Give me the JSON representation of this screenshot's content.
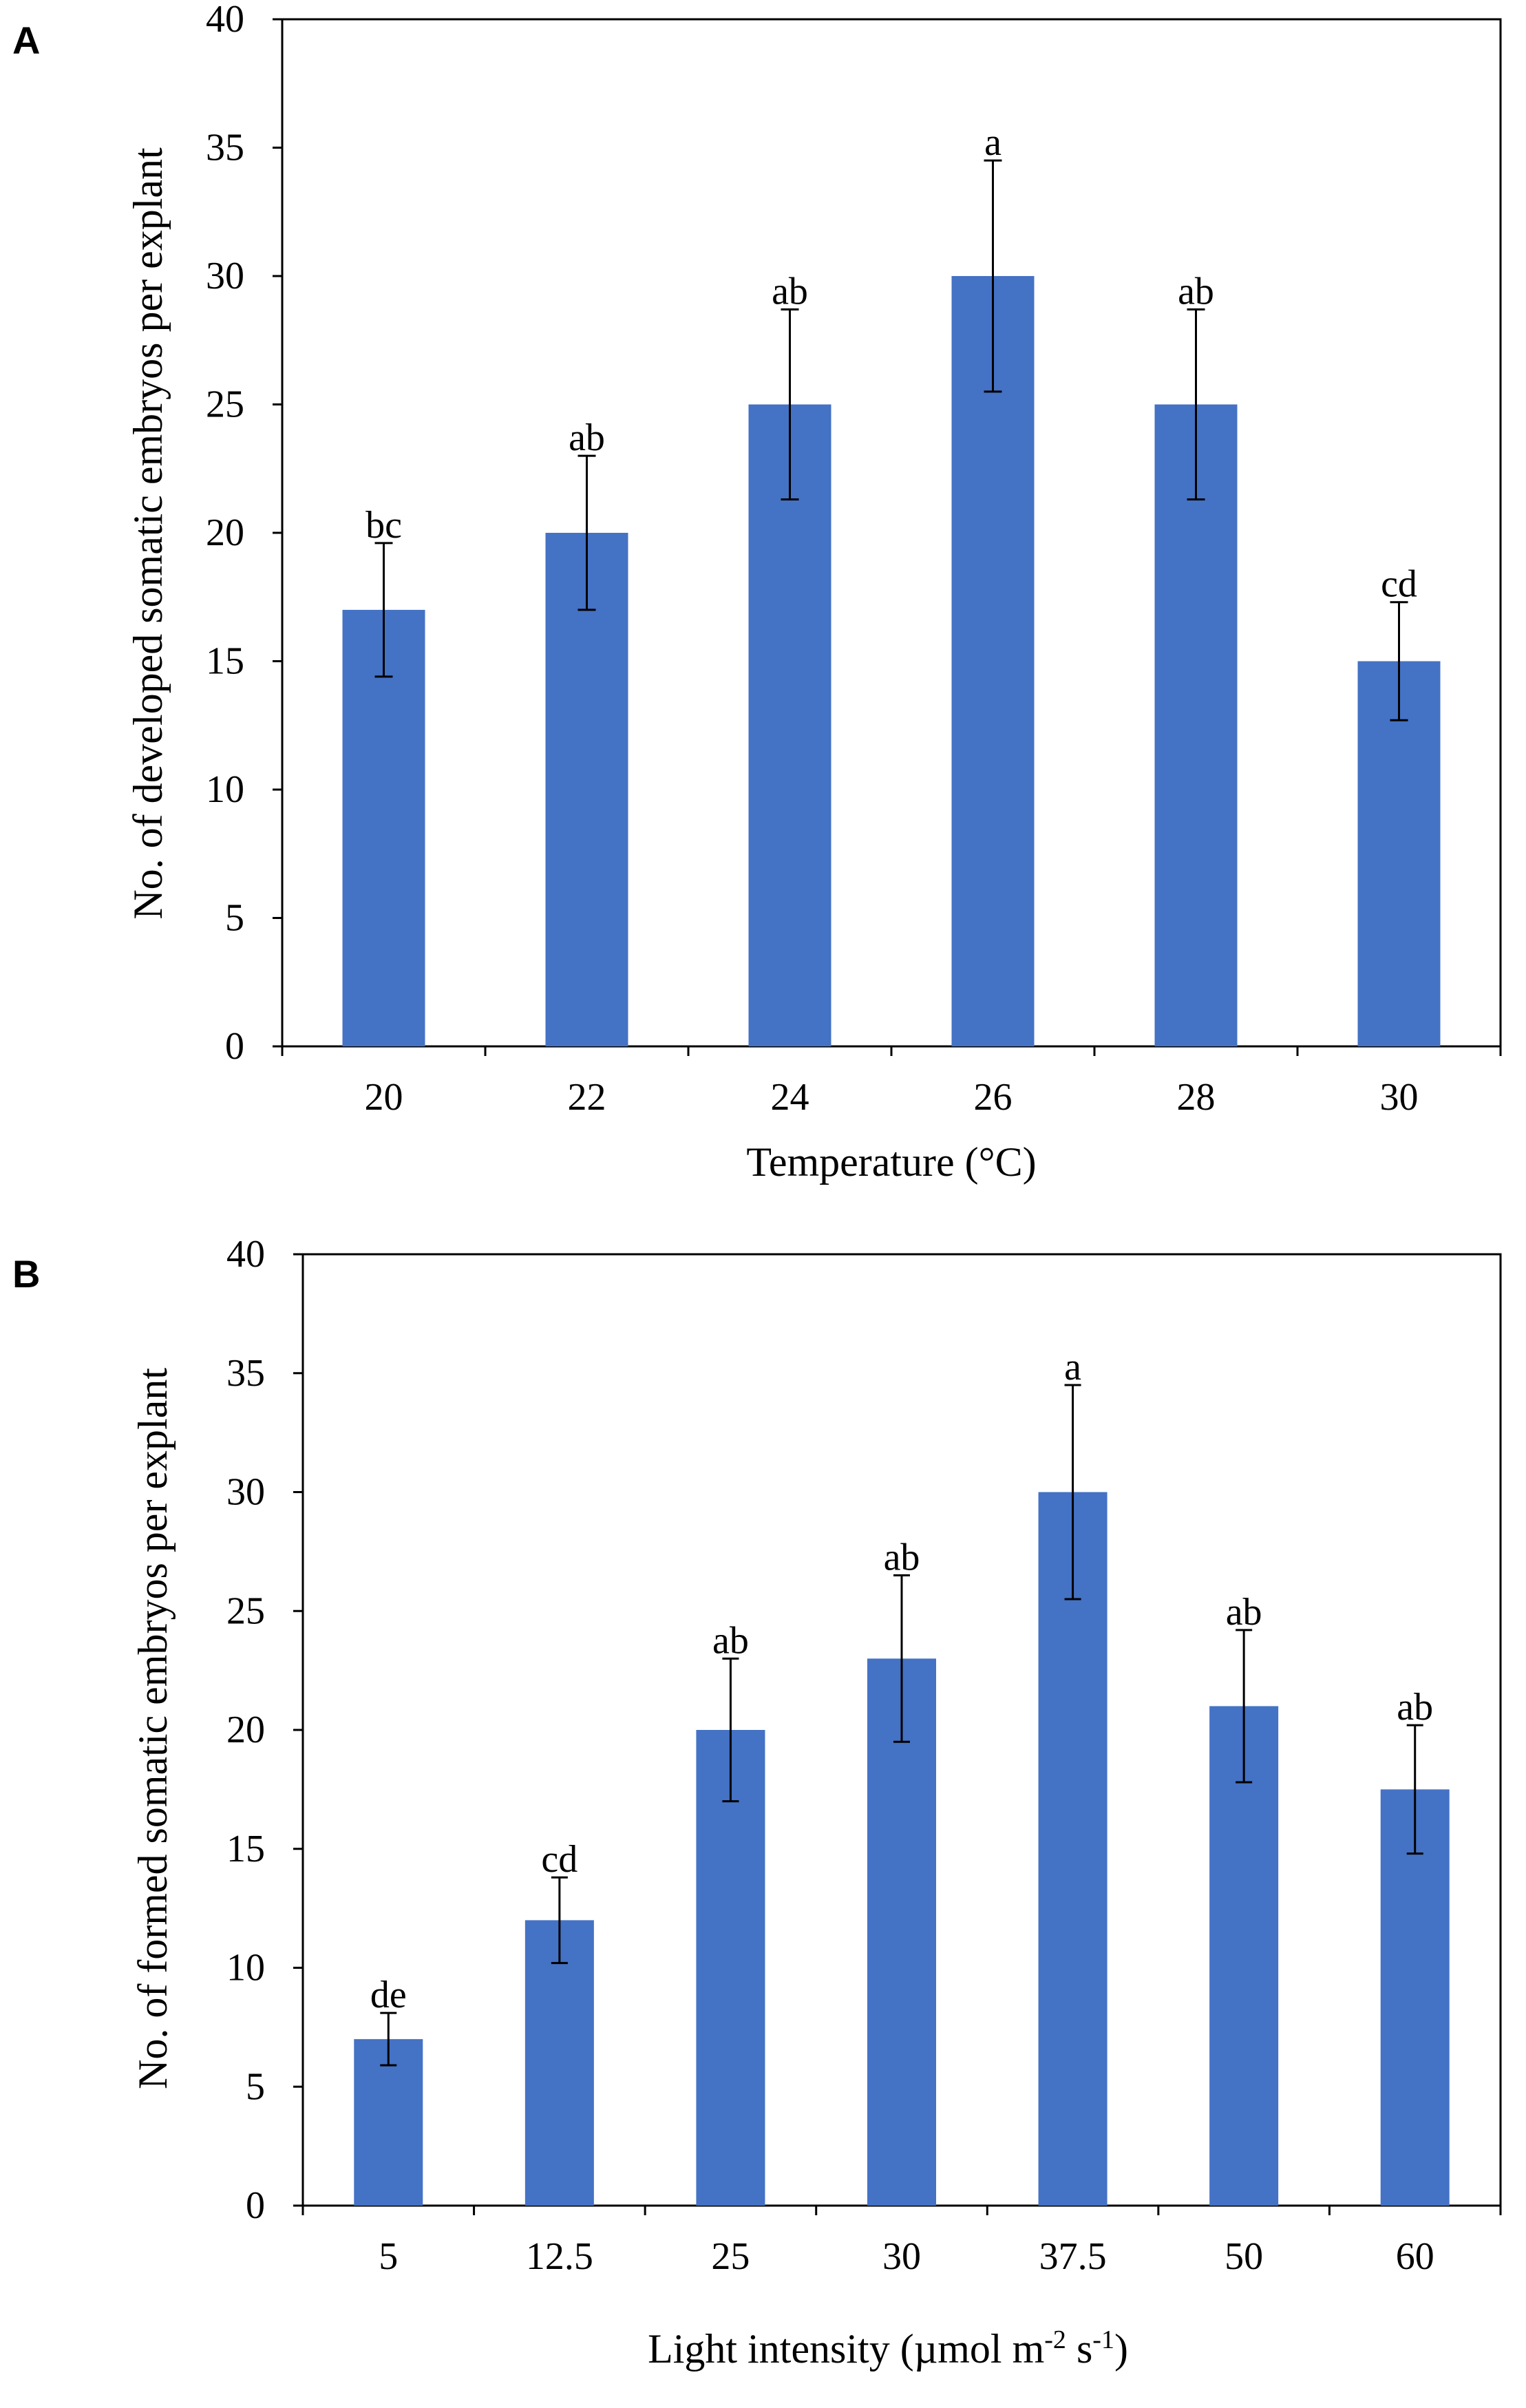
{
  "figure": {
    "panels": [
      "A",
      "B"
    ]
  },
  "colors": {
    "bar": "#4472C4",
    "axis": "#000000",
    "text": "#000000"
  },
  "chart_data": [
    {
      "panel": "A",
      "type": "bar",
      "title": "",
      "categories": [
        "20",
        "22",
        "24",
        "26",
        "28",
        "30"
      ],
      "values": [
        17,
        20,
        25,
        30,
        25,
        15
      ],
      "errors": [
        2.6,
        3.0,
        3.7,
        4.5,
        3.7,
        2.3
      ],
      "letters": [
        "bc",
        "ab",
        "ab",
        "a",
        "ab",
        "cd"
      ],
      "xlabel": "Temperature (°C)",
      "ylabel": "No. of developed somatic embryos per explant",
      "ylim": [
        0,
        40
      ],
      "yticks": [
        0,
        5,
        10,
        15,
        20,
        25,
        30,
        35,
        40
      ],
      "grid": false
    },
    {
      "panel": "B",
      "type": "bar",
      "title": "",
      "categories": [
        "5",
        "12.5",
        "25",
        "30",
        "37.5",
        "50",
        "60"
      ],
      "values": [
        7,
        12,
        20,
        23,
        30,
        21,
        17.5
      ],
      "errors": [
        1.1,
        1.8,
        3.0,
        3.5,
        4.5,
        3.2,
        2.7
      ],
      "letters": [
        "de",
        "cd",
        "ab",
        "ab",
        "a",
        "ab",
        "ab"
      ],
      "xlabel": "Light intensity (µmol m-2 s-1)",
      "ylabel": "No. of  formed somatic embryos per explant",
      "ylim": [
        0,
        40
      ],
      "yticks": [
        0,
        5,
        10,
        15,
        20,
        25,
        30,
        35,
        40
      ],
      "grid": false
    }
  ]
}
